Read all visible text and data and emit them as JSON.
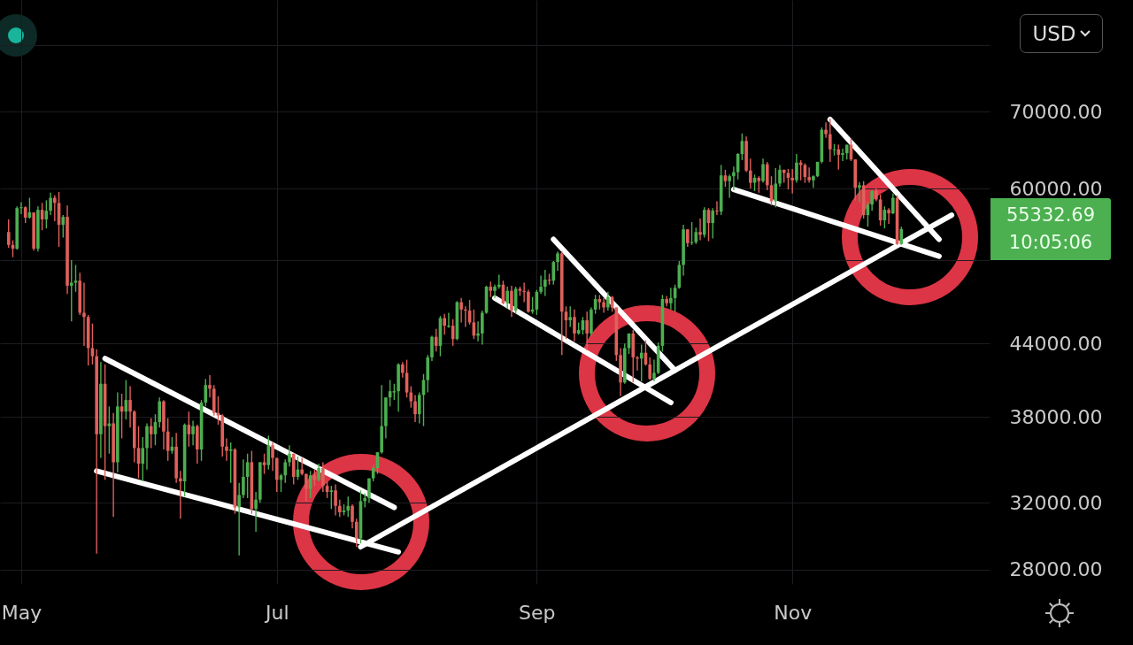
{
  "chart_data": {
    "type": "candlestick",
    "log": "y",
    "grid": true,
    "xlim": [
      "--04-27",
      "--12-17"
    ],
    "xticks": [
      {
        "value": "--05-01",
        "label": "May"
      },
      {
        "value": "--07-01",
        "label": "Jul"
      },
      {
        "value": "--09-01",
        "label": "Sep"
      },
      {
        "value": "--11-01",
        "label": "Nov"
      }
    ],
    "ylim": [
      27200,
      87500
    ],
    "yticks": [
      {
        "value": 28000,
        "label": "28000.00"
      },
      {
        "value": 32000,
        "label": "32000.00"
      },
      {
        "value": 38000,
        "label": "38000.00"
      },
      {
        "value": 44000,
        "label": "44000.00"
      },
      {
        "value": 52000,
        "label": null
      },
      {
        "value": 60000,
        "label": "60000.00"
      },
      {
        "value": 70000,
        "label": "70000.00"
      },
      {
        "value": 80000,
        "label": null
      }
    ],
    "annotations": [
      "55332.69",
      "10:05:06",
      "USD"
    ],
    "series": [
      {
        "color": "#4caf50",
        "x": [
          "--04-30",
          "--05-01",
          "--05-03",
          "--05-05",
          "--05-07",
          "--05-08",
          "--05-11",
          "--05-13",
          "--05-14",
          "--05-20",
          "--05-22",
          "--05-24",
          "--05-26",
          "--05-30",
          "--05-31",
          "--06-02",
          "--06-03",
          "--06-06",
          "--06-09",
          "--06-11",
          "--06-13",
          "--06-14",
          "--06-20",
          "--06-22",
          "--06-23",
          "--06-24",
          "--06-26",
          "--06-27",
          "--06-29",
          "--07-02",
          "--07-03",
          "--07-04",
          "--07-06",
          "--07-09",
          "--07-11",
          "--07-14",
          "--07-17",
          "--07-18",
          "--07-21",
          "--07-22",
          "--07-23",
          "--07-24",
          "--07-25",
          "--07-26",
          "--07-27",
          "--07-28",
          "--07-29",
          "--07-30",
          "--08-04",
          "--08-05",
          "--08-06",
          "--08-07",
          "--08-09",
          "--08-11",
          "--08-13",
          "--08-18",
          "--08-19",
          "--08-20",
          "--08-22",
          "--08-23",
          "--08-25",
          "--08-27",
          "--08-31",
          "--09-01",
          "--09-02",
          "--09-03",
          "--09-05",
          "--09-06",
          "--09-09",
          "--09-11",
          "--09-12",
          "--09-14",
          "--09-15",
          "--09-18",
          "--09-22",
          "--09-23",
          "--09-26",
          "--09-29",
          "--09-30",
          "--10-01",
          "--10-03",
          "--10-04",
          "--10-05",
          "--10-06",
          "--10-08",
          "--10-09",
          "--10-11",
          "--10-13",
          "--10-15",
          "--10-17",
          "--10-18",
          "--10-19",
          "--10-20",
          "--10-23",
          "--10-25",
          "--10-28",
          "--10-29",
          "--11-02",
          "--11-06",
          "--11-07",
          "--11-08",
          "--11-11",
          "--11-13",
          "--11-14",
          "--11-17",
          "--11-19",
          "--11-20",
          "--11-23",
          "--11-25",
          "--11-27"
        ],
        "ohlc": [
          [
            53200,
            57900,
            53100,
            57700
          ],
          [
            57700,
            58400,
            57000,
            57800
          ],
          [
            56600,
            58900,
            56500,
            57200
          ],
          [
            53200,
            57900,
            52900,
            57500
          ],
          [
            56400,
            58600,
            55400,
            57400
          ],
          [
            57400,
            59500,
            56900,
            58900
          ],
          [
            55800,
            56900,
            54400,
            56700
          ],
          [
            49400,
            52000,
            46000,
            49700
          ],
          [
            49700,
            51500,
            48800,
            49900
          ],
          [
            36700,
            42400,
            35000,
            40600
          ],
          [
            37300,
            38800,
            35300,
            37500
          ],
          [
            34700,
            39900,
            34000,
            38800
          ],
          [
            38400,
            40900,
            37800,
            39300
          ],
          [
            34600,
            36500,
            33400,
            35700
          ],
          [
            35700,
            37500,
            34200,
            37300
          ],
          [
            36700,
            38200,
            35900,
            37600
          ],
          [
            37600,
            39500,
            37200,
            39200
          ],
          [
            35500,
            36500,
            35300,
            35800
          ],
          [
            33400,
            37500,
            32400,
            37400
          ],
          [
            36700,
            37700,
            35900,
            37300
          ],
          [
            35600,
            39300,
            34800,
            39100
          ],
          [
            39100,
            41000,
            38800,
            40500
          ],
          [
            35500,
            36100,
            33300,
            35600
          ],
          [
            31700,
            33300,
            28800,
            32500
          ],
          [
            32500,
            34900,
            32300,
            33700
          ],
          [
            33700,
            35300,
            32300,
            34700
          ],
          [
            31600,
            32700,
            30200,
            32200
          ],
          [
            32200,
            34700,
            32000,
            34700
          ],
          [
            34500,
            36600,
            34200,
            35900
          ],
          [
            33500,
            33900,
            32700,
            33800
          ],
          [
            33800,
            34900,
            33300,
            34700
          ],
          [
            34700,
            35900,
            34400,
            35300
          ],
          [
            33700,
            35100,
            33500,
            34200
          ],
          [
            32900,
            34100,
            32300,
            33800
          ],
          [
            33500,
            34600,
            33400,
            34300
          ],
          [
            32700,
            33100,
            31600,
            32800
          ],
          [
            31400,
            31900,
            31200,
            31500
          ],
          [
            31500,
            32400,
            31100,
            31800
          ],
          [
            29800,
            32800,
            29500,
            32100
          ],
          [
            32100,
            32600,
            31700,
            32300
          ],
          [
            32300,
            33600,
            32000,
            33600
          ],
          [
            33600,
            34500,
            33400,
            34300
          ],
          [
            34300,
            35400,
            33900,
            35400
          ],
          [
            35400,
            40500,
            35300,
            37300
          ],
          [
            37300,
            39500,
            36400,
            39500
          ],
          [
            39500,
            40900,
            38800,
            40000
          ],
          [
            39900,
            40600,
            39300,
            40000
          ],
          [
            40000,
            42300,
            38400,
            42200
          ],
          [
            38200,
            39900,
            37500,
            39700
          ],
          [
            39700,
            41400,
            37300,
            40900
          ],
          [
            40900,
            43000,
            39900,
            42800
          ],
          [
            42800,
            44700,
            42500,
            44600
          ],
          [
            43800,
            46500,
            42900,
            46300
          ],
          [
            45500,
            46800,
            45400,
            45600
          ],
          [
            44400,
            47900,
            44300,
            47800
          ],
          [
            44700,
            46000,
            44200,
            44900
          ],
          [
            44900,
            47000,
            43900,
            46800
          ],
          [
            46800,
            49400,
            46700,
            49300
          ],
          [
            48900,
            49500,
            48200,
            49300
          ],
          [
            49300,
            50500,
            49100,
            49500
          ],
          [
            47700,
            49300,
            47200,
            48900
          ],
          [
            47000,
            49300,
            46700,
            49100
          ],
          [
            46900,
            48300,
            46700,
            47100
          ],
          [
            47100,
            49000,
            46600,
            48800
          ],
          [
            48800,
            50400,
            48600,
            49300
          ],
          [
            49300,
            51000,
            48400,
            50000
          ],
          [
            49900,
            51900,
            49500,
            51800
          ],
          [
            51800,
            52900,
            50900,
            52700
          ],
          [
            46100,
            47400,
            45500,
            46400
          ],
          [
            44900,
            45900,
            44800,
            45200
          ],
          [
            45200,
            46400,
            44800,
            46100
          ],
          [
            44900,
            47300,
            44700,
            47100
          ],
          [
            47100,
            48500,
            46700,
            48100
          ],
          [
            47300,
            48800,
            47000,
            48300
          ],
          [
            40700,
            44000,
            40600,
            43600
          ],
          [
            43600,
            44900,
            43100,
            44900
          ],
          [
            42700,
            43900,
            40800,
            43200
          ],
          [
            41000,
            42600,
            40800,
            41500
          ],
          [
            41500,
            44100,
            41400,
            43800
          ],
          [
            43800,
            48500,
            43300,
            48100
          ],
          [
            47700,
            49200,
            47100,
            48200
          ],
          [
            48200,
            49500,
            46900,
            49200
          ],
          [
            49200,
            51900,
            49100,
            51500
          ],
          [
            51500,
            55800,
            50400,
            55300
          ],
          [
            53800,
            56100,
            53600,
            53900
          ],
          [
            53900,
            55500,
            53700,
            55000
          ],
          [
            54700,
            57800,
            54400,
            57500
          ],
          [
            56000,
            57700,
            54300,
            57400
          ],
          [
            57300,
            62900,
            56900,
            61600
          ],
          [
            60900,
            61700,
            58900,
            61500
          ],
          [
            61500,
            62700,
            59800,
            62000
          ],
          [
            62000,
            64400,
            61100,
            64300
          ],
          [
            64300,
            67000,
            63500,
            66000
          ],
          [
            60700,
            61700,
            59700,
            61300
          ],
          [
            60900,
            63700,
            60700,
            63000
          ],
          [
            58500,
            62500,
            57800,
            60600
          ],
          [
            60600,
            62900,
            60200,
            62300
          ],
          [
            61000,
            64300,
            60700,
            63200
          ],
          [
            61000,
            61600,
            60100,
            61500
          ],
          [
            61500,
            63300,
            61400,
            63300
          ],
          [
            63300,
            67800,
            63100,
            67500
          ],
          [
            64800,
            65600,
            64100,
            64900
          ],
          [
            64200,
            65000,
            63400,
            64400
          ],
          [
            64400,
            65500,
            63600,
            65500
          ],
          [
            60100,
            60800,
            58400,
            60400
          ],
          [
            56900,
            58400,
            55600,
            58100
          ],
          [
            58100,
            59800,
            57400,
            59700
          ],
          [
            56300,
            57900,
            55400,
            57500
          ],
          [
            57100,
            59400,
            57000,
            58900
          ],
          [
            53700,
            55600,
            53600,
            55332.69
          ]
        ]
      },
      {
        "color": "#e0605c",
        "x": [
          "--04-28",
          "--04-29",
          "--05-02",
          "--05-04",
          "--05-06",
          "--05-09",
          "--05-10",
          "--05-12",
          "--05-15",
          "--05-16",
          "--05-17",
          "--05-18",
          "--05-19",
          "--05-21",
          "--05-23",
          "--05-25",
          "--05-27",
          "--05-28",
          "--05-29",
          "--06-01",
          "--06-04",
          "--06-05",
          "--06-07",
          "--06-08",
          "--06-10",
          "--06-12",
          "--06-15",
          "--06-16",
          "--06-17",
          "--06-18",
          "--06-19",
          "--06-21",
          "--06-25",
          "--06-28",
          "--06-30",
          "--07-01",
          "--07-05",
          "--07-07",
          "--07-08",
          "--07-10",
          "--07-12",
          "--07-13",
          "--07-15",
          "--07-16",
          "--07-19",
          "--07-20",
          "--07-31",
          "--08-01",
          "--08-02",
          "--08-03",
          "--08-08",
          "--08-10",
          "--08-12",
          "--08-14",
          "--08-15",
          "--08-16",
          "--08-17",
          "--08-21",
          "--08-24",
          "--08-26",
          "--08-28",
          "--08-29",
          "--08-30",
          "--09-04",
          "--09-07",
          "--09-08",
          "--09-10",
          "--09-13",
          "--09-16",
          "--09-17",
          "--09-19",
          "--09-20",
          "--09-21",
          "--09-24",
          "--09-25",
          "--09-27",
          "--09-28",
          "--10-02",
          "--10-07",
          "--10-10",
          "--10-12",
          "--10-14",
          "--10-16",
          "--10-21",
          "--10-22",
          "--10-24",
          "--10-26",
          "--10-27",
          "--10-30",
          "--10-31",
          "--11-01",
          "--11-03",
          "--11-04",
          "--11-05",
          "--11-09",
          "--11-10",
          "--11-12",
          "--11-15",
          "--11-16",
          "--11-18",
          "--11-21",
          "--11-22",
          "--11-24",
          "--11-26"
        ],
        "ohlc": [
          [
            55000,
            56400,
            53300,
            53600
          ],
          [
            53600,
            54100,
            52300,
            53200
          ],
          [
            57800,
            57900,
            56000,
            56600
          ],
          [
            57200,
            57200,
            53000,
            53200
          ],
          [
            57500,
            58300,
            55200,
            56400
          ],
          [
            58900,
            59200,
            56200,
            58300
          ],
          [
            58300,
            59600,
            53400,
            55800
          ],
          [
            56700,
            58000,
            48600,
            49400
          ],
          [
            49900,
            50700,
            46600,
            46800
          ],
          [
            46800,
            49700,
            43800,
            46400
          ],
          [
            46400,
            46600,
            42100,
            43600
          ],
          [
            43600,
            45800,
            42200,
            42900
          ],
          [
            42900,
            43500,
            28900,
            36700
          ],
          [
            40600,
            42200,
            33500,
            37300
          ],
          [
            37500,
            38300,
            31100,
            34700
          ],
          [
            38800,
            39800,
            36400,
            38400
          ],
          [
            39300,
            40400,
            37200,
            38400
          ],
          [
            38400,
            38500,
            34700,
            35700
          ],
          [
            35700,
            37300,
            33600,
            34600
          ],
          [
            37300,
            37900,
            35700,
            36700
          ],
          [
            39200,
            39300,
            35600,
            36900
          ],
          [
            36900,
            37900,
            34800,
            35500
          ],
          [
            35800,
            36800,
            33300,
            33600
          ],
          [
            33600,
            34100,
            31000,
            33400
          ],
          [
            37400,
            38400,
            35800,
            36700
          ],
          [
            37300,
            37400,
            34600,
            35600
          ],
          [
            40500,
            41300,
            39500,
            40200
          ],
          [
            40200,
            40500,
            38100,
            38300
          ],
          [
            38300,
            39600,
            37400,
            38100
          ],
          [
            38100,
            38200,
            35100,
            35800
          ],
          [
            35800,
            36400,
            34800,
            35500
          ],
          [
            35600,
            35700,
            31300,
            31700
          ],
          [
            34700,
            35500,
            31300,
            31600
          ],
          [
            34700,
            35300,
            33900,
            34500
          ],
          [
            35900,
            36100,
            34100,
            35000
          ],
          [
            35000,
            35000,
            32700,
            33500
          ],
          [
            35300,
            35300,
            33200,
            33700
          ],
          [
            34200,
            35000,
            33800,
            33900
          ],
          [
            33900,
            33900,
            32100,
            32900
          ],
          [
            33800,
            34200,
            33100,
            33500
          ],
          [
            34300,
            34700,
            32700,
            33100
          ],
          [
            33100,
            33400,
            32300,
            32700
          ],
          [
            32800,
            33200,
            31200,
            31800
          ],
          [
            31800,
            32200,
            31100,
            31400
          ],
          [
            31800,
            31900,
            30400,
            30800
          ],
          [
            30800,
            31000,
            29300,
            29800
          ],
          [
            42200,
            42400,
            41100,
            41500
          ],
          [
            41500,
            42600,
            39500,
            39900
          ],
          [
            39900,
            40400,
            38700,
            39200
          ],
          [
            39200,
            39700,
            37600,
            38200
          ],
          [
            44600,
            45300,
            43300,
            43800
          ],
          [
            46300,
            46700,
            44800,
            45600
          ],
          [
            45600,
            46200,
            43800,
            44400
          ],
          [
            47800,
            48200,
            45900,
            47100
          ],
          [
            47100,
            47400,
            45500,
            47000
          ],
          [
            47000,
            48000,
            45700,
            45900
          ],
          [
            45900,
            47100,
            44400,
            44700
          ],
          [
            49300,
            49800,
            48300,
            48900
          ],
          [
            49500,
            49900,
            47600,
            47700
          ],
          [
            48900,
            49400,
            46400,
            47000
          ],
          [
            49100,
            49300,
            48400,
            48900
          ],
          [
            48900,
            49700,
            47800,
            48800
          ],
          [
            48800,
            49000,
            46800,
            46900
          ],
          [
            50000,
            50600,
            49500,
            49900
          ],
          [
            52700,
            52900,
            43000,
            46900
          ],
          [
            46900,
            47400,
            44400,
            46100
          ],
          [
            46400,
            47100,
            44200,
            44900
          ],
          [
            46100,
            46900,
            43400,
            44900
          ],
          [
            48100,
            48500,
            47100,
            47800
          ],
          [
            47800,
            48200,
            46800,
            47300
          ],
          [
            48300,
            48400,
            46900,
            47300
          ],
          [
            47300,
            47300,
            42500,
            43000
          ],
          [
            43000,
            43600,
            39600,
            40700
          ],
          [
            44900,
            45200,
            40700,
            42800
          ],
          [
            42800,
            42900,
            41700,
            42700
          ],
          [
            43200,
            44300,
            42100,
            42200
          ],
          [
            42200,
            42800,
            40900,
            41000
          ],
          [
            48100,
            48400,
            47400,
            47700
          ],
          [
            55300,
            55300,
            53400,
            53800
          ],
          [
            55000,
            56500,
            54100,
            54700
          ],
          [
            57500,
            57700,
            54000,
            56000
          ],
          [
            57400,
            58500,
            56900,
            57300
          ],
          [
            61600,
            62300,
            60200,
            60900
          ],
          [
            66000,
            66600,
            62000,
            62200
          ],
          [
            62200,
            63700,
            60000,
            60700
          ],
          [
            61300,
            61500,
            59500,
            60900
          ],
          [
            63000,
            63300,
            59800,
            60400
          ],
          [
            60400,
            61500,
            58000,
            58500
          ],
          [
            62300,
            62300,
            60700,
            61900
          ],
          [
            61900,
            62400,
            59900,
            61300
          ],
          [
            61300,
            62400,
            59400,
            61000
          ],
          [
            63200,
            63500,
            61000,
            62900
          ],
          [
            62900,
            63100,
            60700,
            61400
          ],
          [
            61400,
            62600,
            60700,
            61000
          ],
          [
            67500,
            68500,
            66400,
            66900
          ],
          [
            66900,
            69000,
            63300,
            64900
          ],
          [
            64900,
            65500,
            62300,
            64200
          ],
          [
            65500,
            66300,
            63400,
            63600
          ],
          [
            63600,
            63600,
            58600,
            60100
          ],
          [
            60400,
            60900,
            56500,
            56900
          ],
          [
            59700,
            60000,
            58500,
            58700
          ],
          [
            58700,
            59300,
            55700,
            56300
          ],
          [
            57500,
            57700,
            55900,
            57100
          ],
          [
            58900,
            59200,
            53600,
            53700
          ]
        ]
      },
      {
        "type": "line",
        "color": "#ffffff",
        "x": [
          "--05-21",
          "--07-29"
        ],
        "values": [
          42700,
          31700
        ]
      },
      {
        "type": "line",
        "color": "#ffffff",
        "x": [
          "--05-19",
          "--07-30"
        ],
        "values": [
          34100,
          29000
        ]
      },
      {
        "type": "line",
        "color": "#ffffff",
        "x": [
          "--07-21",
          "--12-09"
        ],
        "values": [
          29300,
          56900
        ]
      },
      {
        "type": "line",
        "color": "#ffffff",
        "x": [
          "--09-05",
          "--10-04"
        ],
        "values": [
          54200,
          41700
        ]
      },
      {
        "type": "line",
        "color": "#ffffff",
        "x": [
          "--08-22",
          "--10-03"
        ],
        "values": [
          48200,
          39100
        ]
      },
      {
        "type": "line",
        "color": "#ffffff",
        "x": [
          "--11-10",
          "--12-06"
        ],
        "values": [
          68900,
          54200
        ]
      },
      {
        "type": "line",
        "color": "#ffffff",
        "x": [
          "--10-18",
          "--12-06"
        ],
        "values": [
          59900,
          52400
        ]
      }
    ]
  }
}
